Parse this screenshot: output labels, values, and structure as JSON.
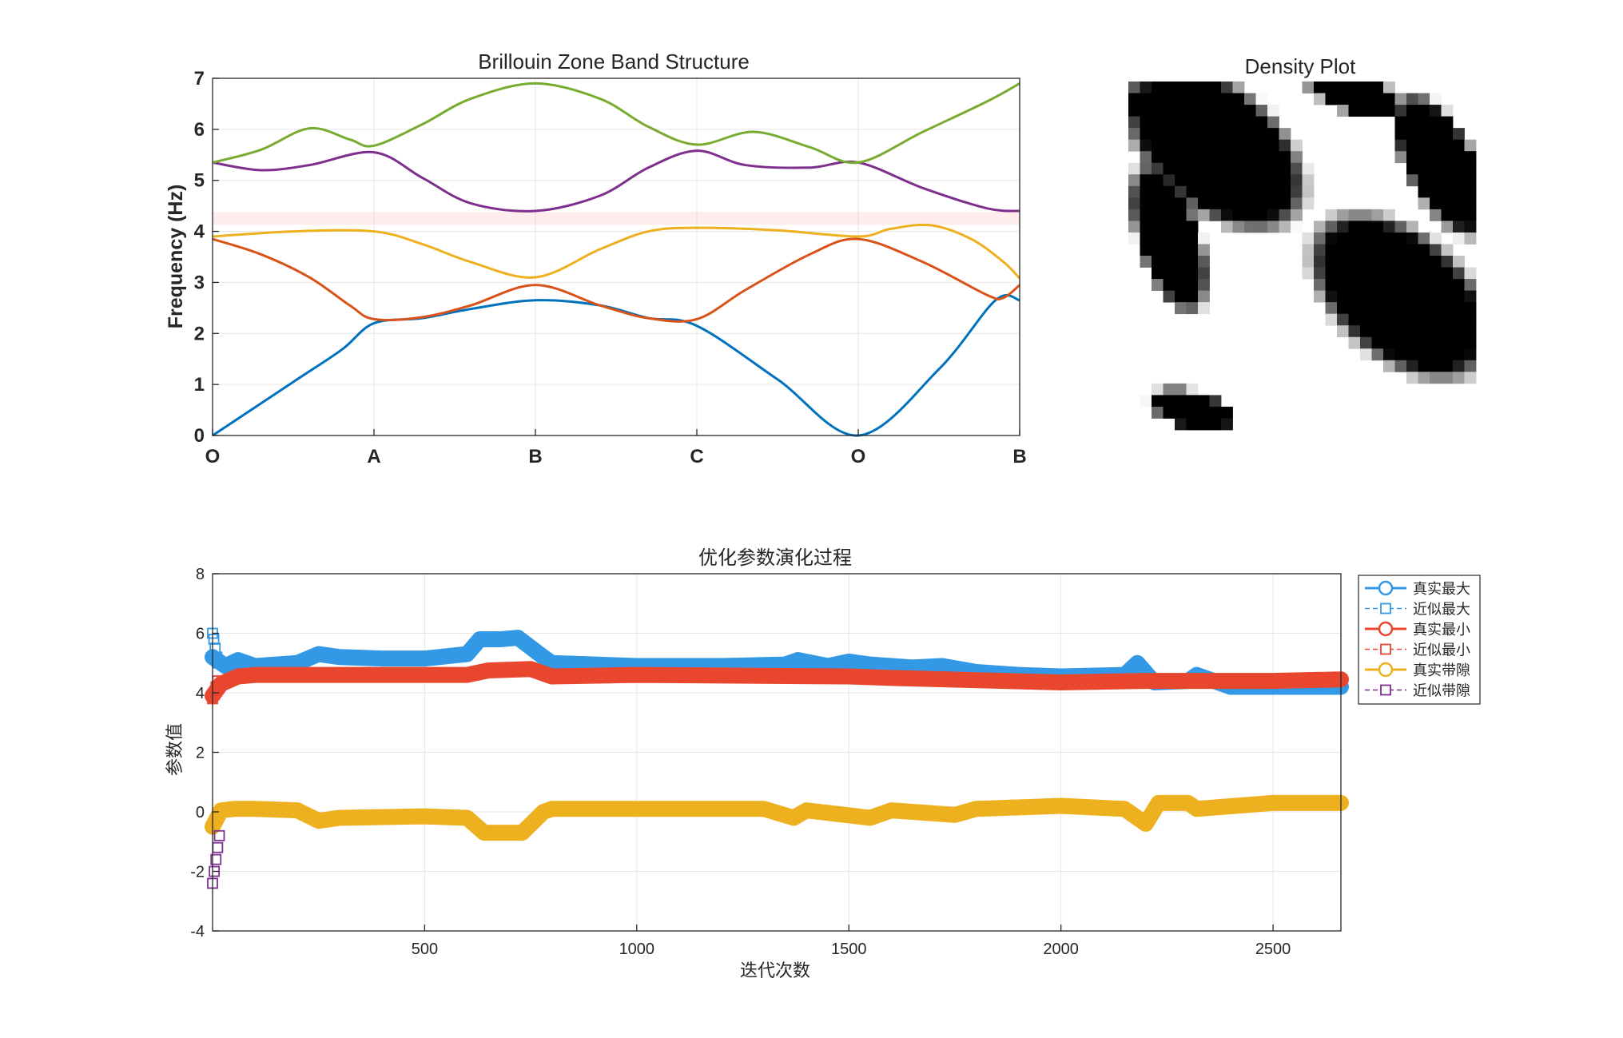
{
  "chart_data": [
    {
      "type": "line",
      "title": "Brillouin Zone Band Structure",
      "xlabel": "",
      "ylabel": "Frequency (Hz)",
      "xticks": [
        "O",
        "A",
        "B",
        "C",
        "O",
        "B"
      ],
      "xlim": [
        0,
        5
      ],
      "ylim": [
        0,
        7
      ],
      "yticks": [
        "0",
        "1",
        "2",
        "3",
        "4",
        "5",
        "6",
        "7"
      ],
      "grid": true,
      "band_gap": [
        4.13,
        4.38
      ],
      "series": [
        {
          "color": "#0072BD",
          "x": [
            0,
            0.5,
            0.8,
            1,
            1.3,
            1.6,
            2,
            2.4,
            2.7,
            3,
            3.5,
            4,
            4.5,
            4.85,
            5
          ],
          "y": [
            0,
            1.05,
            1.68,
            2.2,
            2.3,
            2.48,
            2.65,
            2.55,
            2.3,
            2.15,
            1.1,
            0,
            1.3,
            2.65,
            2.65
          ]
        },
        {
          "color": "#D95319",
          "x": [
            0,
            0.3,
            0.6,
            0.85,
            1,
            1.3,
            1.6,
            2,
            2.4,
            2.7,
            3,
            3.3,
            3.7,
            4,
            4.4,
            4.8,
            4.9,
            5
          ],
          "y": [
            3.85,
            3.55,
            3.1,
            2.55,
            2.28,
            2.32,
            2.55,
            2.95,
            2.55,
            2.3,
            2.28,
            2.85,
            3.55,
            3.85,
            3.4,
            2.75,
            2.7,
            2.95
          ]
        },
        {
          "color": "#EDB120",
          "x": [
            0,
            0.5,
            1,
            1.3,
            1.6,
            2,
            2.4,
            2.7,
            3,
            3.5,
            4,
            4.2,
            4.45,
            4.7,
            4.9,
            5
          ],
          "y": [
            3.9,
            4.0,
            4.0,
            3.75,
            3.4,
            3.1,
            3.65,
            4.0,
            4.07,
            4.02,
            3.9,
            4.05,
            4.12,
            3.85,
            3.4,
            3.08
          ]
        },
        {
          "color": "#7E2F8E",
          "x": [
            0,
            0.3,
            0.6,
            1,
            1.3,
            1.6,
            2,
            2.4,
            2.7,
            3,
            3.3,
            3.7,
            4,
            4.4,
            4.8,
            5
          ],
          "y": [
            5.35,
            5.2,
            5.3,
            5.55,
            5.05,
            4.55,
            4.4,
            4.7,
            5.25,
            5.58,
            5.3,
            5.25,
            5.35,
            4.85,
            4.45,
            4.4
          ]
        },
        {
          "color": "#77AC30",
          "x": [
            0,
            0.3,
            0.6,
            0.85,
            1,
            1.3,
            1.6,
            2,
            2.4,
            2.7,
            3,
            3.35,
            3.7,
            4,
            4.4,
            4.8,
            5
          ],
          "y": [
            5.35,
            5.6,
            6.02,
            5.8,
            5.68,
            6.1,
            6.6,
            6.9,
            6.6,
            6.05,
            5.7,
            5.95,
            5.65,
            5.35,
            5.95,
            6.55,
            6.9
          ]
        }
      ]
    },
    {
      "type": "heatmap",
      "title": "Density Plot",
      "grid": false
    },
    {
      "type": "scatter",
      "title": "优化参数演化过程",
      "xlabel": "迭代次数",
      "ylabel": "参数值",
      "xlim": [
        0,
        2660
      ],
      "ylim": [
        -4,
        8
      ],
      "xticks": [
        "500",
        "1000",
        "1500",
        "2000",
        "2500"
      ],
      "yticks": [
        "-4",
        "-2",
        "0",
        "2",
        "4",
        "6",
        "8"
      ],
      "grid": true,
      "legend_position": "top-right",
      "series": [
        {
          "name": "真实最大",
          "color": "#3399E6",
          "marker": "circle",
          "x": [
            0,
            30,
            60,
            100,
            200,
            250,
            300,
            400,
            500,
            600,
            630,
            680,
            720,
            780,
            800,
            1000,
            1200,
            1350,
            1380,
            1450,
            1500,
            1550,
            1650,
            1720,
            1800,
            1900,
            2000,
            2150,
            2180,
            2220,
            2300,
            2320,
            2400,
            2500,
            2660
          ],
          "y": [
            5.2,
            4.9,
            5.1,
            4.9,
            5.0,
            5.3,
            5.2,
            5.15,
            5.15,
            5.3,
            5.8,
            5.8,
            5.85,
            5.2,
            5.0,
            4.9,
            4.9,
            4.95,
            5.1,
            4.9,
            5.05,
            4.95,
            4.85,
            4.9,
            4.7,
            4.6,
            4.55,
            4.6,
            5.0,
            4.35,
            4.4,
            4.6,
            4.2,
            4.2,
            4.2
          ]
        },
        {
          "name": "近似最大",
          "color": "#3399E6",
          "marker": "square",
          "x": [
            0,
            3,
            6,
            10,
            14
          ],
          "y": [
            6.0,
            5.8,
            5.5,
            5.2,
            5.0
          ]
        },
        {
          "name": "真实最小",
          "color": "#E8472E",
          "marker": "circle",
          "x": [
            0,
            20,
            60,
            100,
            300,
            500,
            600,
            650,
            750,
            800,
            1000,
            1500,
            1600,
            2000,
            2200,
            2300,
            2500,
            2660
          ],
          "y": [
            3.9,
            4.3,
            4.55,
            4.6,
            4.6,
            4.6,
            4.6,
            4.75,
            4.8,
            4.55,
            4.6,
            4.55,
            4.5,
            4.35,
            4.4,
            4.4,
            4.4,
            4.45
          ]
        },
        {
          "name": "近似最小",
          "color": "#E8472E",
          "marker": "square",
          "x": [
            0,
            4,
            8,
            12
          ],
          "y": [
            3.8,
            4.0,
            4.2,
            4.4
          ]
        },
        {
          "name": "真实带隙",
          "color": "#EDB120",
          "marker": "circle",
          "x": [
            0,
            20,
            50,
            100,
            200,
            250,
            300,
            500,
            600,
            640,
            700,
            730,
            780,
            800,
            1000,
            1300,
            1370,
            1400,
            1550,
            1600,
            1750,
            1800,
            2000,
            2150,
            2200,
            2230,
            2300,
            2320,
            2500,
            2660
          ],
          "y": [
            -0.5,
            0.05,
            0.1,
            0.1,
            0.05,
            -0.3,
            -0.2,
            -0.15,
            -0.2,
            -0.7,
            -0.7,
            -0.7,
            0.0,
            0.1,
            0.1,
            0.1,
            -0.2,
            0.05,
            -0.2,
            0.05,
            -0.1,
            0.1,
            0.2,
            0.1,
            -0.4,
            0.3,
            0.3,
            0.1,
            0.3,
            0.3
          ]
        },
        {
          "name": "近似带隙",
          "color": "#7E2F8E",
          "marker": "square",
          "x": [
            0,
            4,
            8,
            12,
            16
          ],
          "y": [
            -2.4,
            -2.0,
            -1.6,
            -1.2,
            -0.8
          ]
        }
      ]
    }
  ]
}
